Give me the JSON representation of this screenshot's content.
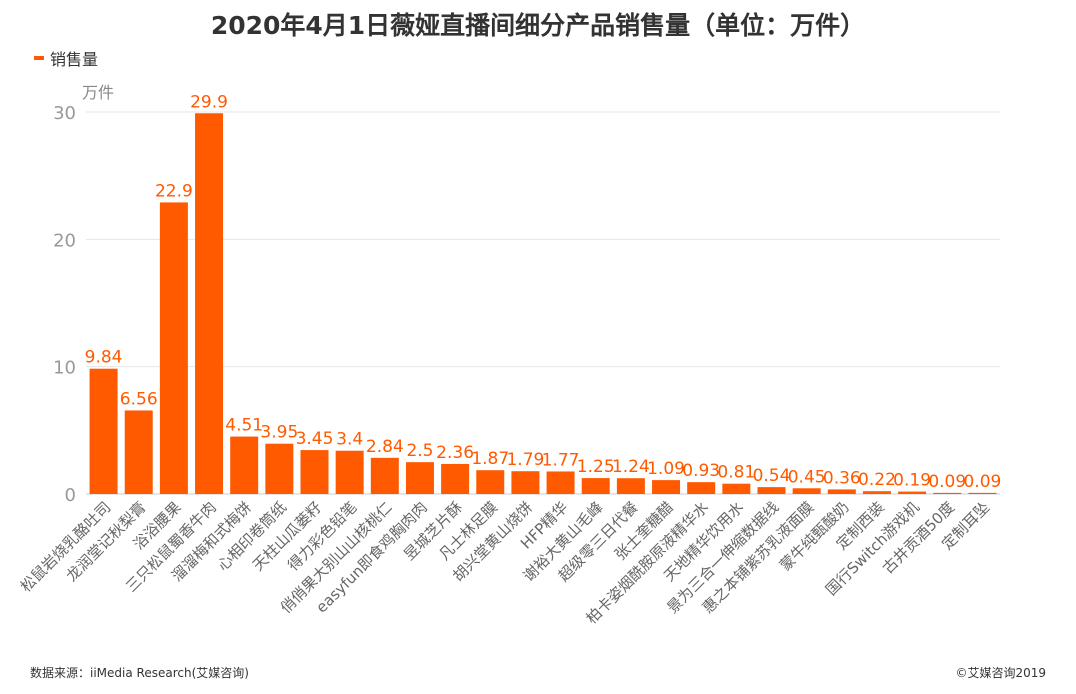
{
  "title": "2020年4月1日薇娅直播间细分产品销售量（单位：万件）",
  "legend": {
    "label": "销售量",
    "color": "#ff5a00"
  },
  "footer": {
    "source": "数据来源：iiMedia Research(艾媒咨询)",
    "copyright": "©艾媒咨询2019"
  },
  "chart_data": {
    "type": "bar",
    "ylabel": "万件",
    "ylim": [
      0,
      30
    ],
    "yticks": [
      0,
      10,
      20,
      30
    ],
    "grid": true,
    "legend_position": "top-left",
    "bar_color": "#ff5a00",
    "categories": [
      "松鼠岩烧乳酪吐司",
      "龙润堂记秋梨膏",
      "浴浴腰果",
      "三只松鼠蜀香牛肉",
      "溜溜梅和式梅饼",
      "心相印卷筒纸",
      "天柱山瓜蒌籽",
      "得力彩色铅笔",
      "俏俏果大别山山核桃仁",
      "easyfun即食鸡胸肉肉",
      "昱城芝片酥",
      "凡士林足膜",
      "胡兴堂黄山烧饼",
      "HFP精华",
      "谢裕大黄山毛峰",
      "超级零三日代餐",
      "张士奎糖醋",
      "柏卡姿烟酰胺原液精华水",
      "天地精华饮用水",
      "景为三合一伸缩数据线",
      "惠之本铺紫苏乳液面膜",
      "蒙牛纯甄酸奶",
      "定制西装",
      "国行Switch游戏机",
      "古井贡酒50度",
      "定制耳坠"
    ],
    "values": [
      9.84,
      6.56,
      22.9,
      29.9,
      4.51,
      3.95,
      3.45,
      3.4,
      2.84,
      2.5,
      2.36,
      1.87,
      1.79,
      1.77,
      1.25,
      1.24,
      1.09,
      0.93,
      0.81,
      0.54,
      0.45,
      0.36,
      0.22,
      0.19,
      0.09,
      0.09
    ],
    "value_labels": [
      "9.84",
      "6.56",
      "22.9",
      "29.9",
      "4.51",
      "3.95",
      "3.45",
      "3.4",
      "2.84",
      "2.5",
      "2.36",
      "1.87",
      "1.79",
      "1.77",
      "1.25",
      "1.24",
      "1.09",
      "0.93",
      "0.81",
      "0.54",
      "0.45",
      "0.36",
      "0.22",
      "0.19",
      "0.09",
      "0.09"
    ]
  }
}
